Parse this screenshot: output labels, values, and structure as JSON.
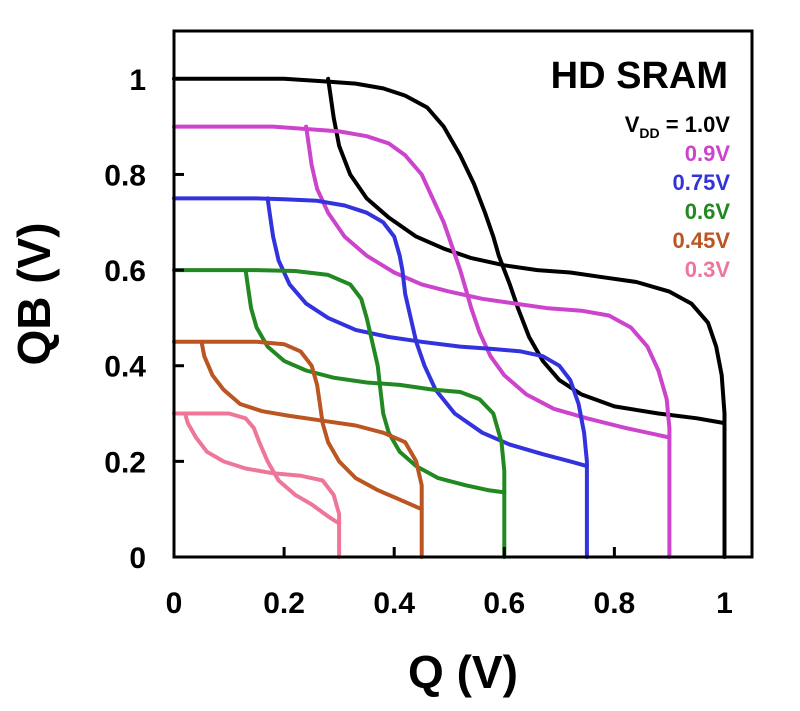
{
  "chart_data": {
    "type": "line",
    "title": "HD SRAM",
    "xlabel": "Q (V)",
    "ylabel": "QB (V)",
    "xlim": [
      0,
      1.05
    ],
    "ylim": [
      0,
      1.1
    ],
    "x_ticks": [
      "0",
      "0.2",
      "0.4",
      "0.6",
      "0.8",
      "1"
    ],
    "x_tick_values": [
      0,
      0.2,
      0.4,
      0.6,
      0.8,
      1.0
    ],
    "y_ticks": [
      "0",
      "0.2",
      "0.4",
      "0.6",
      "0.8",
      "1"
    ],
    "y_tick_values": [
      0,
      0.2,
      0.4,
      0.6,
      0.8,
      1.0
    ],
    "legend_prefix": "V",
    "legend_prefix_sub": "DD",
    "legend_prefix_tail": " = ",
    "series": [
      {
        "name": "1.0V",
        "vdd": 1.0,
        "color": "#000000",
        "curve_a": [
          [
            0,
            1.0
          ],
          [
            0.2,
            1.0
          ],
          [
            0.27,
            0.995
          ],
          [
            0.33,
            0.99
          ],
          [
            0.38,
            0.98
          ],
          [
            0.42,
            0.965
          ],
          [
            0.46,
            0.94
          ],
          [
            0.49,
            0.9
          ],
          [
            0.52,
            0.84
          ],
          [
            0.545,
            0.78
          ],
          [
            0.565,
            0.72
          ],
          [
            0.58,
            0.67
          ],
          [
            0.59,
            0.63
          ],
          [
            0.6,
            0.6
          ],
          [
            0.61,
            0.57
          ],
          [
            0.625,
            0.52
          ],
          [
            0.645,
            0.46
          ],
          [
            0.67,
            0.41
          ],
          [
            0.7,
            0.37
          ],
          [
            0.74,
            0.34
          ],
          [
            0.8,
            0.315
          ],
          [
            0.88,
            0.3
          ],
          [
            0.95,
            0.29
          ],
          [
            1.0,
            0.28
          ]
        ],
        "curve_b": [
          [
            0.28,
            1.0
          ],
          [
            0.285,
            0.96
          ],
          [
            0.29,
            0.92
          ],
          [
            0.3,
            0.86
          ],
          [
            0.32,
            0.8
          ],
          [
            0.35,
            0.75
          ],
          [
            0.39,
            0.71
          ],
          [
            0.44,
            0.67
          ],
          [
            0.49,
            0.645
          ],
          [
            0.54,
            0.625
          ],
          [
            0.6,
            0.61
          ],
          [
            0.66,
            0.6
          ],
          [
            0.72,
            0.595
          ],
          [
            0.78,
            0.585
          ],
          [
            0.84,
            0.575
          ],
          [
            0.9,
            0.555
          ],
          [
            0.94,
            0.53
          ],
          [
            0.97,
            0.49
          ],
          [
            0.985,
            0.44
          ],
          [
            0.995,
            0.38
          ],
          [
            1.0,
            0.3
          ],
          [
            1.0,
            0.0
          ]
        ]
      },
      {
        "name": "0.9V",
        "vdd": 0.9,
        "color": "#cc44cc",
        "curve_a": [
          [
            0,
            0.9
          ],
          [
            0.18,
            0.9
          ],
          [
            0.24,
            0.895
          ],
          [
            0.3,
            0.89
          ],
          [
            0.35,
            0.88
          ],
          [
            0.39,
            0.865
          ],
          [
            0.42,
            0.84
          ],
          [
            0.45,
            0.8
          ],
          [
            0.47,
            0.75
          ],
          [
            0.49,
            0.7
          ],
          [
            0.505,
            0.65
          ],
          [
            0.52,
            0.6
          ],
          [
            0.53,
            0.56
          ],
          [
            0.54,
            0.52
          ],
          [
            0.555,
            0.47
          ],
          [
            0.575,
            0.42
          ],
          [
            0.6,
            0.38
          ],
          [
            0.64,
            0.34
          ],
          [
            0.69,
            0.31
          ],
          [
            0.75,
            0.29
          ],
          [
            0.82,
            0.27
          ],
          [
            0.88,
            0.255
          ],
          [
            0.9,
            0.25
          ]
        ],
        "curve_b": [
          [
            0.24,
            0.9
          ],
          [
            0.245,
            0.86
          ],
          [
            0.25,
            0.82
          ],
          [
            0.26,
            0.77
          ],
          [
            0.28,
            0.72
          ],
          [
            0.31,
            0.67
          ],
          [
            0.35,
            0.63
          ],
          [
            0.4,
            0.595
          ],
          [
            0.45,
            0.57
          ],
          [
            0.5,
            0.555
          ],
          [
            0.56,
            0.54
          ],
          [
            0.62,
            0.53
          ],
          [
            0.68,
            0.52
          ],
          [
            0.74,
            0.515
          ],
          [
            0.79,
            0.505
          ],
          [
            0.83,
            0.48
          ],
          [
            0.86,
            0.44
          ],
          [
            0.88,
            0.39
          ],
          [
            0.895,
            0.33
          ],
          [
            0.9,
            0.27
          ],
          [
            0.9,
            0.0
          ]
        ]
      },
      {
        "name": "0.75V",
        "vdd": 0.75,
        "color": "#3333dd",
        "curve_a": [
          [
            0,
            0.75
          ],
          [
            0.15,
            0.75
          ],
          [
            0.2,
            0.748
          ],
          [
            0.26,
            0.745
          ],
          [
            0.31,
            0.735
          ],
          [
            0.35,
            0.72
          ],
          [
            0.38,
            0.7
          ],
          [
            0.4,
            0.67
          ],
          [
            0.41,
            0.63
          ],
          [
            0.415,
            0.6
          ],
          [
            0.42,
            0.55
          ],
          [
            0.43,
            0.5
          ],
          [
            0.44,
            0.45
          ],
          [
            0.455,
            0.4
          ],
          [
            0.475,
            0.35
          ],
          [
            0.51,
            0.3
          ],
          [
            0.56,
            0.26
          ],
          [
            0.61,
            0.235
          ],
          [
            0.67,
            0.215
          ],
          [
            0.72,
            0.2
          ],
          [
            0.75,
            0.19
          ]
        ],
        "curve_b": [
          [
            0.17,
            0.75
          ],
          [
            0.175,
            0.71
          ],
          [
            0.18,
            0.67
          ],
          [
            0.19,
            0.62
          ],
          [
            0.21,
            0.57
          ],
          [
            0.24,
            0.53
          ],
          [
            0.28,
            0.5
          ],
          [
            0.33,
            0.475
          ],
          [
            0.39,
            0.46
          ],
          [
            0.45,
            0.45
          ],
          [
            0.52,
            0.44
          ],
          [
            0.58,
            0.435
          ],
          [
            0.63,
            0.43
          ],
          [
            0.67,
            0.42
          ],
          [
            0.7,
            0.4
          ],
          [
            0.72,
            0.37
          ],
          [
            0.735,
            0.32
          ],
          [
            0.745,
            0.26
          ],
          [
            0.75,
            0.2
          ],
          [
            0.75,
            0.0
          ]
        ]
      },
      {
        "name": "0.6V",
        "vdd": 0.6,
        "color": "#228822",
        "curve_a": [
          [
            0,
            0.6
          ],
          [
            0.15,
            0.6
          ],
          [
            0.22,
            0.598
          ],
          [
            0.28,
            0.59
          ],
          [
            0.32,
            0.57
          ],
          [
            0.34,
            0.54
          ],
          [
            0.35,
            0.5
          ],
          [
            0.36,
            0.45
          ],
          [
            0.37,
            0.4
          ],
          [
            0.375,
            0.35
          ],
          [
            0.38,
            0.3
          ],
          [
            0.39,
            0.26
          ],
          [
            0.41,
            0.22
          ],
          [
            0.44,
            0.19
          ],
          [
            0.48,
            0.165
          ],
          [
            0.53,
            0.15
          ],
          [
            0.57,
            0.14
          ],
          [
            0.6,
            0.135
          ]
        ],
        "curve_b": [
          [
            0.13,
            0.6
          ],
          [
            0.135,
            0.56
          ],
          [
            0.14,
            0.52
          ],
          [
            0.15,
            0.48
          ],
          [
            0.17,
            0.44
          ],
          [
            0.2,
            0.41
          ],
          [
            0.24,
            0.39
          ],
          [
            0.29,
            0.375
          ],
          [
            0.35,
            0.365
          ],
          [
            0.41,
            0.36
          ],
          [
            0.47,
            0.35
          ],
          [
            0.52,
            0.345
          ],
          [
            0.555,
            0.33
          ],
          [
            0.58,
            0.3
          ],
          [
            0.595,
            0.24
          ],
          [
            0.6,
            0.18
          ],
          [
            0.6,
            0.0
          ]
        ]
      },
      {
        "name": "0.45V",
        "vdd": 0.45,
        "color": "#bb5522",
        "curve_a": [
          [
            0,
            0.45
          ],
          [
            0.15,
            0.45
          ],
          [
            0.2,
            0.445
          ],
          [
            0.23,
            0.43
          ],
          [
            0.25,
            0.4
          ],
          [
            0.26,
            0.36
          ],
          [
            0.265,
            0.32
          ],
          [
            0.27,
            0.28
          ],
          [
            0.28,
            0.24
          ],
          [
            0.3,
            0.2
          ],
          [
            0.33,
            0.165
          ],
          [
            0.37,
            0.14
          ],
          [
            0.41,
            0.12
          ],
          [
            0.45,
            0.1
          ]
        ],
        "curve_b": [
          [
            0.05,
            0.45
          ],
          [
            0.055,
            0.42
          ],
          [
            0.07,
            0.38
          ],
          [
            0.09,
            0.35
          ],
          [
            0.12,
            0.32
          ],
          [
            0.16,
            0.305
          ],
          [
            0.21,
            0.295
          ],
          [
            0.27,
            0.285
          ],
          [
            0.33,
            0.275
          ],
          [
            0.38,
            0.26
          ],
          [
            0.42,
            0.24
          ],
          [
            0.44,
            0.2
          ],
          [
            0.45,
            0.15
          ],
          [
            0.45,
            0.0
          ]
        ]
      },
      {
        "name": "0.3V",
        "vdd": 0.3,
        "color": "#ee7799",
        "curve_a": [
          [
            0,
            0.3
          ],
          [
            0.1,
            0.3
          ],
          [
            0.13,
            0.29
          ],
          [
            0.145,
            0.27
          ],
          [
            0.155,
            0.24
          ],
          [
            0.17,
            0.2
          ],
          [
            0.19,
            0.16
          ],
          [
            0.22,
            0.13
          ],
          [
            0.25,
            0.11
          ],
          [
            0.28,
            0.085
          ],
          [
            0.3,
            0.07
          ]
        ],
        "curve_b": [
          [
            0.02,
            0.3
          ],
          [
            0.025,
            0.28
          ],
          [
            0.04,
            0.25
          ],
          [
            0.06,
            0.22
          ],
          [
            0.09,
            0.2
          ],
          [
            0.13,
            0.185
          ],
          [
            0.18,
            0.175
          ],
          [
            0.23,
            0.17
          ],
          [
            0.27,
            0.16
          ],
          [
            0.29,
            0.13
          ],
          [
            0.3,
            0.09
          ],
          [
            0.3,
            0.0
          ]
        ]
      }
    ]
  }
}
